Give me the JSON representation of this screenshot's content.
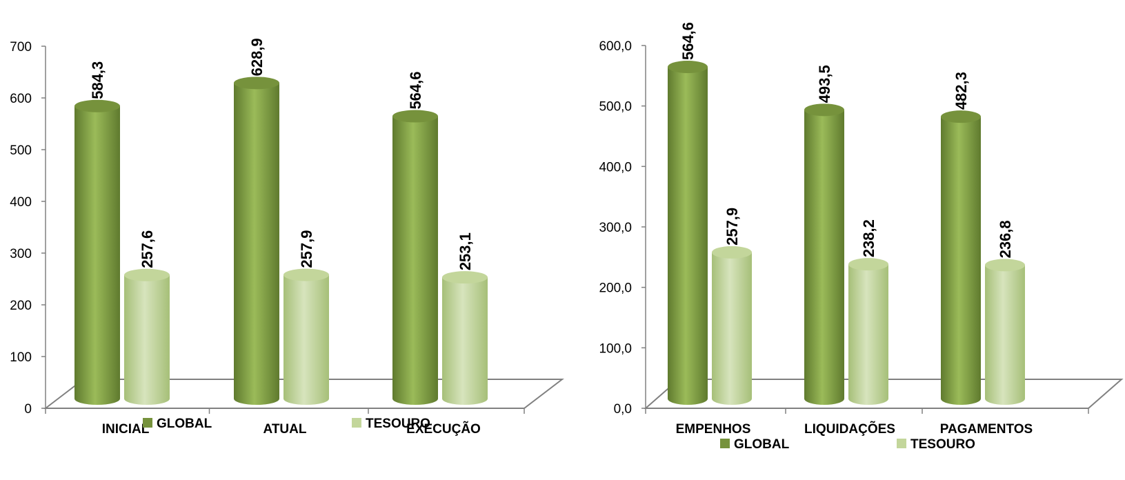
{
  "colors": {
    "global": "#76923c",
    "global_light": "#9bbb59",
    "global_dark": "#4f6228",
    "tesouro": "#c3d69b",
    "tesouro_light": "#d7e4bd",
    "tesouro_dark": "#8fa865",
    "axis": "#808080"
  },
  "chart_data": [
    {
      "type": "bar",
      "categories": [
        "INICIAL",
        "ATUAL",
        "EXECUÇÃO"
      ],
      "series": [
        {
          "name": "GLOBAL",
          "values": [
            584.3,
            628.9,
            564.6
          ],
          "labels": [
            "584,3",
            "628,9",
            "564,6"
          ]
        },
        {
          "name": "TESOURO",
          "values": [
            257.6,
            257.9,
            253.1
          ],
          "labels": [
            "257,6",
            "257,9",
            "253,1"
          ]
        }
      ],
      "ylim": [
        0,
        700
      ],
      "yticks": [
        "0",
        "100",
        "200",
        "300",
        "400",
        "500",
        "600",
        "700"
      ],
      "grid": false,
      "legend": "bottom"
    },
    {
      "type": "bar",
      "categories": [
        "EMPENHOS",
        "LIQUIDAÇÕES",
        "PAGAMENTOS"
      ],
      "series": [
        {
          "name": "GLOBAL",
          "values": [
            564.6,
            493.5,
            482.3
          ],
          "labels": [
            "564,6",
            "493,5",
            "482,3"
          ]
        },
        {
          "name": "TESOURO",
          "values": [
            257.9,
            238.2,
            236.8
          ],
          "labels": [
            "257,9",
            "238,2",
            "236,8"
          ]
        }
      ],
      "ylim": [
        0,
        600
      ],
      "yticks": [
        "0,0",
        "100,0",
        "200,0",
        "300,0",
        "400,0",
        "500,0",
        "600,0"
      ],
      "grid": false,
      "legend": "bottom"
    }
  ]
}
